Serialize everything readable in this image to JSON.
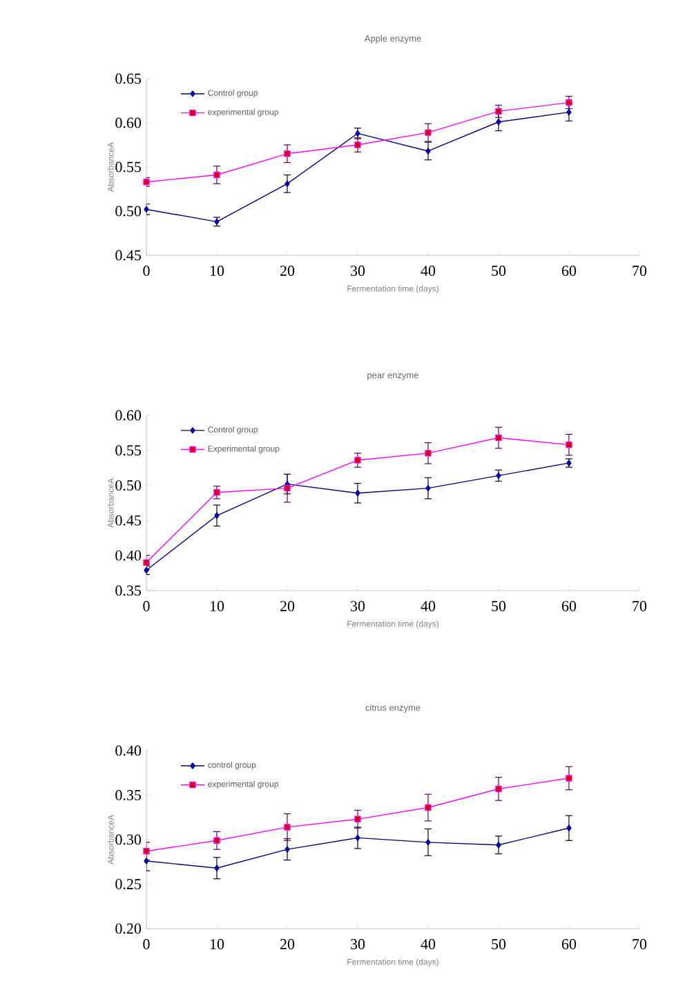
{
  "chart_data": [
    {
      "type": "line",
      "title": "Apple enzyme",
      "xlabel": "Fermentation time (days)",
      "ylabel": "AbsorbanceA",
      "x": [
        0,
        10,
        20,
        30,
        40,
        50,
        60
      ],
      "xlim": [
        0,
        70
      ],
      "xticks": [
        0,
        10,
        20,
        30,
        40,
        50,
        60,
        70
      ],
      "ylim": [
        0.45,
        0.65
      ],
      "yticks": [
        {
          "value": 0.45,
          "label": "0.45"
        },
        {
          "value": 0.5,
          "label": "0.50"
        },
        {
          "value": 0.55,
          "label": "0.55"
        },
        {
          "value": 0.6,
          "label": "0.60"
        },
        {
          "value": 0.65,
          "label": "0.65"
        }
      ],
      "legend": "top left",
      "series": [
        {
          "name": "Control group",
          "color": "#000080",
          "marker": "diamond",
          "values": [
            0.502,
            0.488,
            0.531,
            0.588,
            0.568,
            0.601,
            0.612
          ],
          "errors": [
            0.006,
            0.005,
            0.01,
            0.006,
            0.01,
            0.01,
            0.01
          ]
        },
        {
          "name": "experimental group",
          "color": "#ff00ff",
          "marker": "square",
          "values": [
            0.533,
            0.541,
            0.565,
            0.575,
            0.589,
            0.613,
            0.623
          ],
          "errors": [
            0.005,
            0.01,
            0.01,
            0.008,
            0.01,
            0.007,
            0.007
          ]
        }
      ]
    },
    {
      "type": "line",
      "title": "pear enzyme",
      "xlabel": "Fermentation time (days)",
      "ylabel": "AbsorbanceA",
      "x": [
        0,
        10,
        20,
        30,
        40,
        50,
        60
      ],
      "xlim": [
        0,
        70
      ],
      "xticks": [
        0,
        10,
        20,
        30,
        40,
        50,
        60,
        70
      ],
      "ylim": [
        0.35,
        0.6
      ],
      "yticks": [
        {
          "value": 0.35,
          "label": "0.35"
        },
        {
          "value": 0.4,
          "label": "0.40"
        },
        {
          "value": 0.45,
          "label": "0.45"
        },
        {
          "value": 0.5,
          "label": "0.50"
        },
        {
          "value": 0.55,
          "label": "0.55"
        },
        {
          "value": 0.6,
          "label": "0.60"
        }
      ],
      "legend": "top left",
      "series": [
        {
          "name": "Control group",
          "color": "#000080",
          "marker": "diamond",
          "values": [
            0.379,
            0.457,
            0.502,
            0.489,
            0.496,
            0.514,
            0.532
          ],
          "errors": [
            0.006,
            0.015,
            0.014,
            0.014,
            0.015,
            0.008,
            0.006
          ]
        },
        {
          "name": "Experimental group",
          "color": "#ff00ff",
          "marker": "square",
          "values": [
            0.39,
            0.49,
            0.496,
            0.536,
            0.546,
            0.568,
            0.558
          ],
          "errors": [
            0.01,
            0.009,
            0.02,
            0.01,
            0.015,
            0.015,
            0.015
          ]
        }
      ]
    },
    {
      "type": "line",
      "title": "citrus enzyme",
      "xlabel": "Fermentation time (days)",
      "ylabel": "AbsorbanceA",
      "x": [
        0,
        10,
        20,
        30,
        40,
        50,
        60
      ],
      "xlim": [
        0,
        70
      ],
      "xticks": [
        0,
        10,
        20,
        30,
        40,
        50,
        60,
        70
      ],
      "ylim": [
        0.2,
        0.4
      ],
      "yticks": [
        {
          "value": 0.2,
          "label": "0.20"
        },
        {
          "value": 0.25,
          "label": "0.25"
        },
        {
          "value": 0.3,
          "label": "0.30"
        },
        {
          "value": 0.35,
          "label": "0.35"
        },
        {
          "value": 0.4,
          "label": "0.40"
        }
      ],
      "legend": "top left",
      "series": [
        {
          "name": "control group",
          "color": "#000080",
          "marker": "diamond",
          "values": [
            0.276,
            0.268,
            0.289,
            0.302,
            0.297,
            0.294,
            0.313
          ],
          "errors": [
            0.011,
            0.012,
            0.012,
            0.012,
            0.015,
            0.01,
            0.014
          ]
        },
        {
          "name": "experimental group",
          "color": "#ff00ff",
          "marker": "square",
          "values": [
            0.287,
            0.299,
            0.314,
            0.323,
            0.336,
            0.357,
            0.369
          ],
          "errors": [
            0.01,
            0.01,
            0.015,
            0.01,
            0.015,
            0.013,
            0.013
          ]
        }
      ]
    }
  ]
}
